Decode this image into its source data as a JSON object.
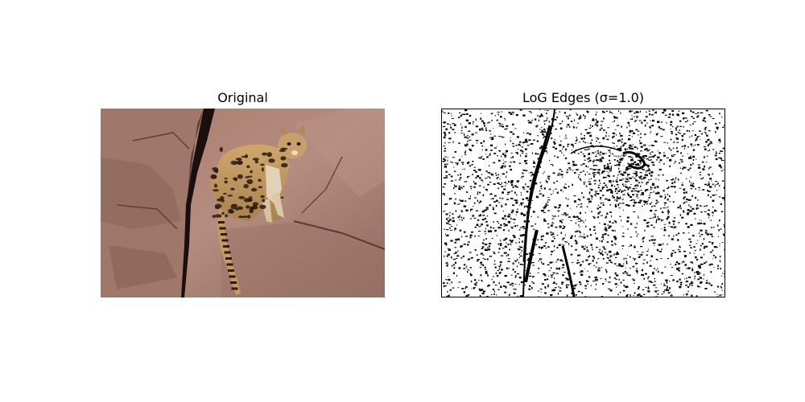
{
  "figure": {
    "panels": [
      {
        "title": "Original",
        "subject": "ocelot-on-rocks",
        "colors": {
          "rock_light": "#b58a7c",
          "rock_mid": "#9a7266",
          "rock_dark": "#6e4c43",
          "crevice": "#1a0f0c",
          "fur": "#c9a06a",
          "spots": "#2a1a10",
          "belly": "#e6dcc8"
        }
      },
      {
        "title": "LoG Edges (σ=1.0)",
        "colors": {
          "background": "#ffffff",
          "edges": "#000000"
        }
      }
    ]
  }
}
